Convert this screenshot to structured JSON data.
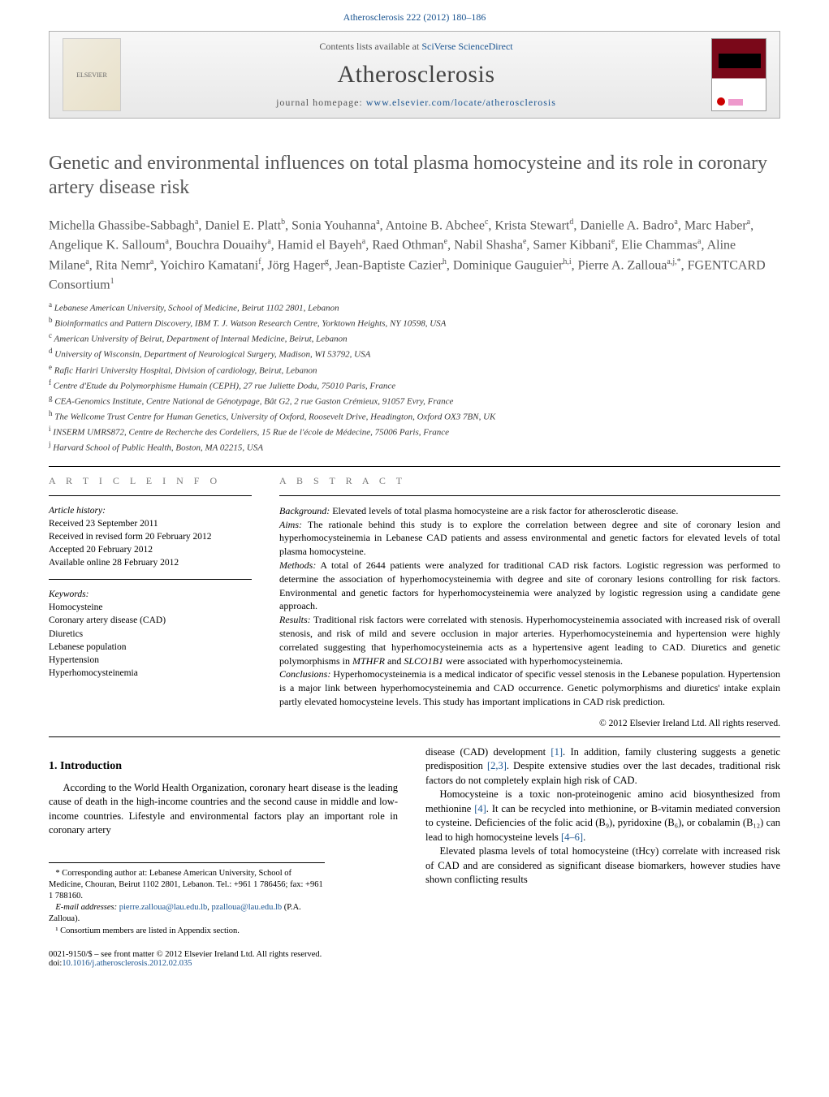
{
  "header_link": {
    "text": "Atherosclerosis 222 (2012) 180–186",
    "color": "#1a5490"
  },
  "banner": {
    "contents_prefix": "Contents lists available at ",
    "contents_link": "SciVerse ScienceDirect",
    "journal_title": "Atherosclerosis",
    "homepage_prefix": "journal homepage: ",
    "homepage_link": "www.elsevier.com/locate/atherosclerosis",
    "elsevier_alt": "ELSEVIER"
  },
  "title": "Genetic and environmental influences on total plasma homocysteine and its role in coronary artery disease risk",
  "authors_html": "Michella Ghassibe-Sabbagh<sup>a</sup>, Daniel E. Platt<sup>b</sup>, Sonia Youhanna<sup>a</sup>, Antoine B. Abchee<sup>c</sup>, Krista Stewart<sup>d</sup>, Danielle A. Badro<sup>a</sup>, Marc Haber<sup>a</sup>, Angelique K. Salloum<sup>a</sup>, Bouchra Douaihy<sup>a</sup>, Hamid el Bayeh<sup>a</sup>, Raed Othman<sup>e</sup>, Nabil Shasha<sup>e</sup>, Samer Kibbani<sup>e</sup>, Elie Chammas<sup>a</sup>, Aline Milane<sup>a</sup>, Rita Nemr<sup>a</sup>, Yoichiro Kamatani<sup>f</sup>, Jörg Hager<sup>g</sup>, Jean-Baptiste Cazier<sup>h</sup>, Dominique Gauguier<sup>h,i</sup>, Pierre A. Zalloua<sup>a,j,*</sup>, FGENTCARD Consortium<sup>1</sup>",
  "affiliations": [
    {
      "sup": "a",
      "text": "Lebanese American University, School of Medicine, Beirut 1102 2801, Lebanon"
    },
    {
      "sup": "b",
      "text": "Bioinformatics and Pattern Discovery, IBM T. J. Watson Research Centre, Yorktown Heights, NY 10598, USA"
    },
    {
      "sup": "c",
      "text": "American University of Beirut, Department of Internal Medicine, Beirut, Lebanon"
    },
    {
      "sup": "d",
      "text": "University of Wisconsin, Department of Neurological Surgery, Madison, WI 53792, USA"
    },
    {
      "sup": "e",
      "text": "Rafic Hariri University Hospital, Division of cardiology, Beirut, Lebanon"
    },
    {
      "sup": "f",
      "text": "Centre d'Etude du Polymorphisme Humain (CEPH), 27 rue Juliette Dodu, 75010 Paris, France"
    },
    {
      "sup": "g",
      "text": "CEA-Genomics Institute, Centre National de Génotypage, Bât G2, 2 rue Gaston Crémieux, 91057 Evry, France"
    },
    {
      "sup": "h",
      "text": "The Wellcome Trust Centre for Human Genetics, University of Oxford, Roosevelt Drive, Headington, Oxford OX3 7BN, UK"
    },
    {
      "sup": "i",
      "text": "INSERM UMRS872, Centre de Recherche des Cordeliers, 15 Rue de l'école de Médecine, 75006 Paris, France"
    },
    {
      "sup": "j",
      "text": "Harvard School of Public Health, Boston, MA 02215, USA"
    }
  ],
  "article_info": {
    "heading": "A R T I C L E   I N F O",
    "history_label": "Article history:",
    "history": [
      "Received 23 September 2011",
      "Received in revised form 20 February 2012",
      "Accepted 20 February 2012",
      "Available online 28 February 2012"
    ],
    "keywords_label": "Keywords:",
    "keywords": [
      "Homocysteine",
      "Coronary artery disease (CAD)",
      "Diuretics",
      "Lebanese population",
      "Hypertension",
      "Hyperhomocysteinemia"
    ]
  },
  "abstract": {
    "heading": "A B S T R A C T",
    "segments": [
      {
        "label": "Background:",
        "text": " Elevated levels of total plasma homocysteine are a risk factor for atherosclerotic disease."
      },
      {
        "label": "Aims:",
        "text": " The rationale behind this study is to explore the correlation between degree and site of coronary lesion and hyperhomocysteinemia in Lebanese CAD patients and assess environmental and genetic factors for elevated levels of total plasma homocysteine."
      },
      {
        "label": "Methods:",
        "text": " A total of 2644 patients were analyzed for traditional CAD risk factors. Logistic regression was performed to determine the association of hyperhomocysteinemia with degree and site of coronary lesions controlling for risk factors. Environmental and genetic factors for hyperhomocysteinemia were analyzed by logistic regression using a candidate gene approach."
      },
      {
        "label": "Results:",
        "text": " Traditional risk factors were correlated with stenosis. Hyperhomocysteinemia associated with increased risk of overall stenosis, and risk of mild and severe occlusion in major arteries. Hyperhomocysteinemia and hypertension were highly correlated suggesting that hyperhomocysteinemia acts as a hypertensive agent leading to CAD. Diuretics and genetic polymorphisms in MTHFR and SLCO1B1 were associated with hyperhomocysteinemia."
      },
      {
        "label": "Conclusions:",
        "text": " Hyperhomocysteinemia is a medical indicator of specific vessel stenosis in the Lebanese population. Hypertension is a major link between hyperhomocysteinemia and CAD occurrence. Genetic polymorphisms and diuretics' intake explain partly elevated homocysteine levels. This study has important implications in CAD risk prediction."
      }
    ],
    "copyright": "© 2012 Elsevier Ireland Ltd. All rights reserved."
  },
  "intro": {
    "heading": "1. Introduction",
    "left_para": "According to the World Health Organization, coronary heart disease is the leading cause of death in the high-income countries and the second cause in middle and low-income countries. Lifestyle and environmental factors play an important role in coronary artery",
    "right_paras": [
      {
        "pre": "disease (CAD) development ",
        "link": "[1]",
        "post": ". In addition, family clustering suggests a genetic predisposition ",
        "link2": "[2,3]",
        "post2": ". Despite extensive studies over the last decades, traditional risk factors do not completely explain high risk of CAD."
      },
      {
        "pre": "Homocysteine is a toxic non-proteinogenic amino acid biosynthesized from methionine ",
        "link": "[4]",
        "post": ". It can be recycled into methionine, or B-vitamin mediated conversion to cysteine. Deficiencies of the folic acid (B₉), pyridoxine (B₆), or cobalamin (B₁₂) can lead to high homocysteine levels ",
        "link2": "[4–6]",
        "post2": "."
      },
      {
        "pre": "Elevated plasma levels of total homocysteine (tHcy) correlate with increased risk of CAD and are considered as significant disease biomarkers, however studies have shown conflicting results",
        "link": "",
        "post": "",
        "link2": "",
        "post2": ""
      }
    ]
  },
  "footnotes": {
    "corr_label": "* Corresponding author at: Lebanese American University, School of Medicine, Chouran, Beirut 1102 2801, Lebanon. Tel.: +961 1 786456; fax: +961 1 788160.",
    "email_label": "E-mail addresses:",
    "email1": "pierre.zalloua@lau.edu.lb",
    "email_sep": ", ",
    "email2": "pzalloua@lau.edu.lb",
    "email_tail": " (P.A. Zalloua).",
    "consortium": "¹ Consortium members are listed in Appendix section."
  },
  "footer": {
    "line1": "0021-9150/$ – see front matter © 2012 Elsevier Ireland Ltd. All rights reserved.",
    "doi_prefix": "doi:",
    "doi": "10.1016/j.atherosclerosis.2012.02.035"
  },
  "colors": {
    "link": "#1a5490",
    "heading_gray": "#777777",
    "title_gray": "#555555",
    "rule": "#000000"
  }
}
